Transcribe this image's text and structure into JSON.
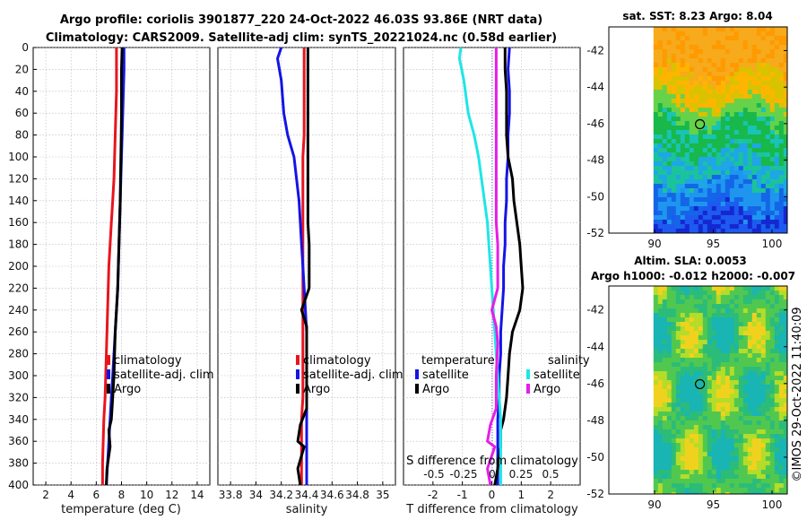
{
  "header": {
    "title_line1": "Argo profile: coriolis 3901877_220 24-Oct-2022 46.03S 93.86E (NRT data)",
    "title_line2": "Climatology: CARS2009. Satellite-adj clim: synTS_20221024.nc (0.58d earlier)"
  },
  "colors": {
    "climatology": "#e8141e",
    "satellite": "#1414e6",
    "argo": "#000000",
    "salinity_argo_diff": "#e61ee6",
    "salinity_sat_diff": "#1ee6e6",
    "grid": "#b4b4c8"
  },
  "chart_data": [
    {
      "type": "line",
      "name": "temperature-profile",
      "xlabel": "temperature (deg C)",
      "ylabel": "",
      "xlim": [
        1,
        15
      ],
      "ylim": [
        400,
        0
      ],
      "x_ticks": [
        "2",
        "4",
        "6",
        "8",
        "10",
        "12",
        "14"
      ],
      "y_ticks": [
        "0",
        "20",
        "40",
        "60",
        "80",
        "100",
        "120",
        "140",
        "160",
        "180",
        "200",
        "220",
        "240",
        "260",
        "280",
        "300",
        "320",
        "340",
        "360",
        "380",
        "400"
      ],
      "series": [
        {
          "name": "climatology",
          "color_key": "climatology",
          "x": [
            7.6,
            7.6,
            7.6,
            7.55,
            7.5,
            7.45,
            7.4,
            7.3,
            7.2,
            7.1,
            7.0,
            6.95,
            6.9,
            6.85,
            6.8,
            6.75,
            6.7,
            6.6,
            6.55,
            6.5,
            6.5
          ],
          "y": [
            0,
            20,
            40,
            60,
            80,
            100,
            120,
            140,
            160,
            180,
            200,
            220,
            240,
            260,
            280,
            300,
            320,
            340,
            360,
            380,
            400
          ]
        },
        {
          "name": "satellite-adj. clim",
          "color_key": "satellite",
          "x": [
            8.2,
            8.2,
            8.15,
            8.1,
            8.05,
            8.0,
            7.95,
            7.9,
            7.85,
            7.8,
            7.75,
            7.7,
            7.6,
            7.5,
            7.4,
            7.3,
            7.2,
            7.1,
            7.0,
            6.9,
            6.8
          ],
          "y": [
            0,
            20,
            40,
            60,
            80,
            100,
            120,
            140,
            160,
            180,
            200,
            220,
            240,
            260,
            280,
            300,
            320,
            340,
            360,
            380,
            400
          ]
        },
        {
          "name": "Argo",
          "color_key": "argo",
          "x": [
            8.05,
            8.0,
            8.0,
            8.0,
            7.98,
            7.95,
            7.92,
            7.9,
            7.85,
            7.8,
            7.75,
            7.7,
            7.6,
            7.5,
            7.45,
            7.4,
            7.3,
            7.2,
            7.0,
            7.1,
            6.85,
            6.8
          ],
          "y": [
            0,
            20,
            40,
            60,
            80,
            100,
            120,
            140,
            160,
            180,
            200,
            220,
            240,
            260,
            280,
            300,
            320,
            340,
            350,
            365,
            385,
            400
          ]
        }
      ],
      "legend": {
        "location": "lower-right",
        "entries": [
          "climatology",
          "satellite-adj. clim",
          "Argo"
        ]
      }
    },
    {
      "type": "line",
      "name": "salinity-profile",
      "xlabel": "salinity",
      "ylabel": "",
      "xlim": [
        33.7,
        35.1
      ],
      "ylim": [
        400,
        0
      ],
      "x_ticks": [
        "33.8",
        "34",
        "34.2",
        "34.4",
        "34.6",
        "34.8",
        "35"
      ],
      "series": [
        {
          "name": "climatology",
          "color_key": "climatology",
          "x": [
            34.38,
            34.38,
            34.38,
            34.38,
            34.38,
            34.37,
            34.37,
            34.37,
            34.37,
            34.37,
            34.37,
            34.37,
            34.37,
            34.37,
            34.37,
            34.37,
            34.37,
            34.36,
            34.36,
            34.36,
            34.36
          ],
          "y": [
            0,
            20,
            40,
            60,
            80,
            100,
            120,
            140,
            160,
            180,
            200,
            220,
            240,
            260,
            280,
            300,
            320,
            340,
            360,
            380,
            400
          ]
        },
        {
          "name": "satellite-adj. clim",
          "color_key": "satellite",
          "x": [
            34.2,
            34.17,
            34.2,
            34.22,
            34.25,
            34.3,
            34.32,
            34.34,
            34.35,
            34.36,
            34.37,
            34.38,
            34.39,
            34.4,
            34.4,
            34.4,
            34.4,
            34.4,
            34.4,
            34.4,
            34.4
          ],
          "y": [
            0,
            10,
            30,
            60,
            80,
            100,
            120,
            140,
            160,
            180,
            200,
            220,
            240,
            260,
            280,
            300,
            320,
            340,
            360,
            380,
            400
          ]
        },
        {
          "name": "Argo",
          "color_key": "argo",
          "x": [
            34.41,
            34.41,
            34.41,
            34.41,
            34.41,
            34.41,
            34.41,
            34.41,
            34.41,
            34.42,
            34.42,
            34.42,
            34.36,
            34.4,
            34.4,
            34.4,
            34.4,
            34.35,
            34.33,
            34.38,
            34.33,
            34.35
          ],
          "y": [
            0,
            20,
            40,
            60,
            80,
            100,
            120,
            140,
            160,
            180,
            200,
            220,
            240,
            255,
            270,
            300,
            330,
            345,
            360,
            365,
            385,
            400
          ]
        }
      ],
      "legend": {
        "location": "lower-right",
        "entries": [
          "climatology",
          "satellite-adj. clim",
          "Argo"
        ]
      }
    },
    {
      "type": "line",
      "name": "difference-profile",
      "xlabel": "T difference from climatology",
      "ylabel": "",
      "xlim": [
        -3,
        3
      ],
      "ylim": [
        400,
        0
      ],
      "x_ticks": [
        "-2",
        "-1",
        "0",
        "1",
        "2"
      ],
      "top_axis_label": "S difference from climatology",
      "top_ticks": [
        "-0.5",
        "-0.25",
        "0",
        "0.25",
        "0.5"
      ],
      "series": [
        {
          "name": "temperature satellite",
          "color_key": "satellite",
          "x": [
            0.6,
            0.55,
            0.6,
            0.6,
            0.55,
            0.55,
            0.5,
            0.5,
            0.45,
            0.45,
            0.4,
            0.4,
            0.35,
            0.3,
            0.3,
            0.25,
            0.25,
            0.2,
            0.2,
            0.2,
            0.2
          ],
          "y": [
            0,
            20,
            40,
            60,
            80,
            100,
            120,
            140,
            160,
            180,
            200,
            220,
            240,
            260,
            280,
            300,
            320,
            340,
            360,
            380,
            400
          ]
        },
        {
          "name": "temperature Argo",
          "color_key": "argo",
          "x": [
            0.45,
            0.45,
            0.5,
            0.5,
            0.5,
            0.55,
            0.7,
            0.75,
            0.85,
            0.95,
            1.0,
            1.05,
            0.95,
            0.7,
            0.6,
            0.55,
            0.5,
            0.4,
            0.3,
            0.3,
            0.2,
            0.1
          ],
          "y": [
            0,
            20,
            40,
            60,
            80,
            100,
            120,
            140,
            160,
            180,
            200,
            220,
            240,
            260,
            280,
            300,
            320,
            340,
            350,
            365,
            385,
            400
          ]
        },
        {
          "name": "salinity satellite",
          "color_key": "salinity_sat_diff",
          "x": [
            -1.05,
            -1.1,
            -0.95,
            -0.8,
            -0.6,
            -0.45,
            -0.35,
            -0.25,
            -0.15,
            -0.1,
            -0.05,
            0.0,
            0.05,
            0.1,
            0.15,
            0.2,
            0.25,
            0.3,
            0.3,
            0.3,
            0.3
          ],
          "y": [
            0,
            10,
            30,
            60,
            80,
            100,
            120,
            140,
            160,
            180,
            200,
            220,
            240,
            260,
            280,
            300,
            320,
            340,
            360,
            380,
            400
          ]
        },
        {
          "name": "salinity Argo",
          "color_key": "salinity_argo_diff",
          "x": [
            0.15,
            0.15,
            0.15,
            0.15,
            0.15,
            0.15,
            0.15,
            0.15,
            0.15,
            0.2,
            0.2,
            0.2,
            0.0,
            0.15,
            0.2,
            0.15,
            0.15,
            -0.05,
            -0.15,
            0.1,
            -0.15,
            -0.05
          ],
          "y": [
            0,
            20,
            40,
            60,
            80,
            100,
            120,
            140,
            160,
            180,
            200,
            220,
            240,
            255,
            270,
            300,
            330,
            345,
            360,
            365,
            385,
            400
          ]
        }
      ],
      "legend": {
        "location": "lower-center",
        "headers": [
          "temperature",
          "salinity"
        ],
        "entries": [
          "satellite",
          "Argo",
          "satellite",
          "Argo"
        ]
      }
    }
  ],
  "map_sst": {
    "title": "sat. SST: 8.23 Argo: 8.04",
    "lat_ticks": [
      "-42",
      "-44",
      "-46",
      "-48",
      "-50",
      "-52"
    ],
    "lon_ticks": [
      "90",
      "95",
      "100"
    ],
    "marker_lon": 93.86,
    "marker_lat": -46.03
  },
  "map_sla": {
    "title_line1": "Altim. SLA: 0.0053",
    "title_line2": "Argo h1000: -0.012 h2000: -0.007",
    "lat_ticks": [
      "-42",
      "-44",
      "-46",
      "-48",
      "-50",
      "-52"
    ],
    "lon_ticks": [
      "90",
      "95",
      "100"
    ],
    "marker_lon": 93.86,
    "marker_lat": -46.03
  },
  "footer": {
    "credit": "©IMOS 29-Oct-2022 11:40:09"
  }
}
